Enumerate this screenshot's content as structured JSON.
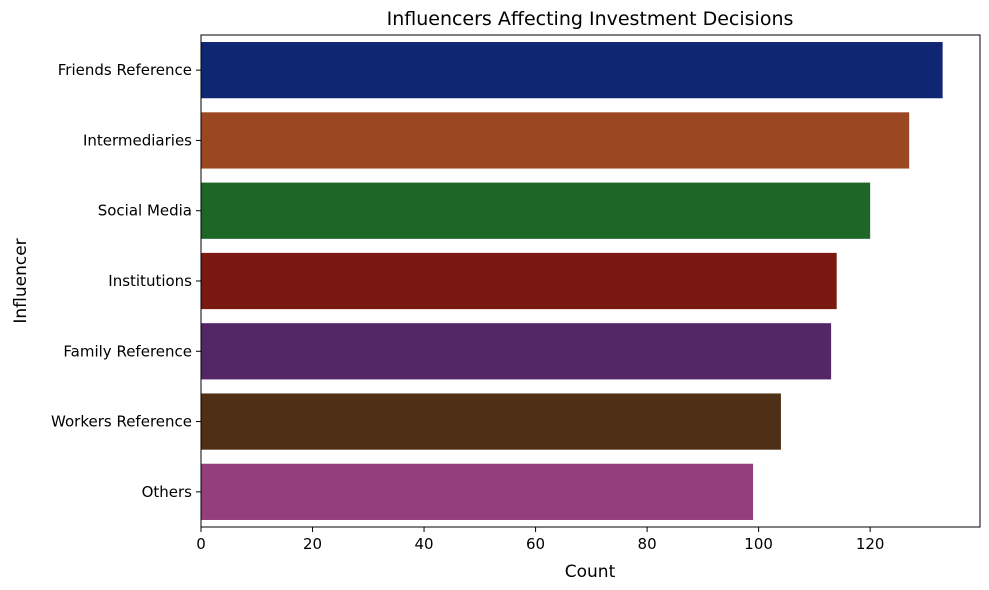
{
  "chart_data": {
    "type": "bar",
    "orientation": "horizontal",
    "title": "Influencers Affecting Investment Decisions",
    "xlabel": "Count",
    "ylabel": "Influencer",
    "categories": [
      "Friends Reference",
      "Intermediaries",
      "Social Media",
      "Institutions",
      "Family Reference",
      "Workers Reference",
      "Others"
    ],
    "values": [
      133,
      127,
      120,
      114,
      113,
      104,
      99
    ],
    "colors": [
      "#0f2772",
      "#9a4722",
      "#1e6626",
      "#791912",
      "#532766",
      "#4f2f16",
      "#933f7d"
    ],
    "xlim": [
      0,
      139.7
    ],
    "xticks": [
      0,
      20,
      40,
      60,
      80,
      100,
      120
    ],
    "grid": false,
    "legend": "none"
  }
}
